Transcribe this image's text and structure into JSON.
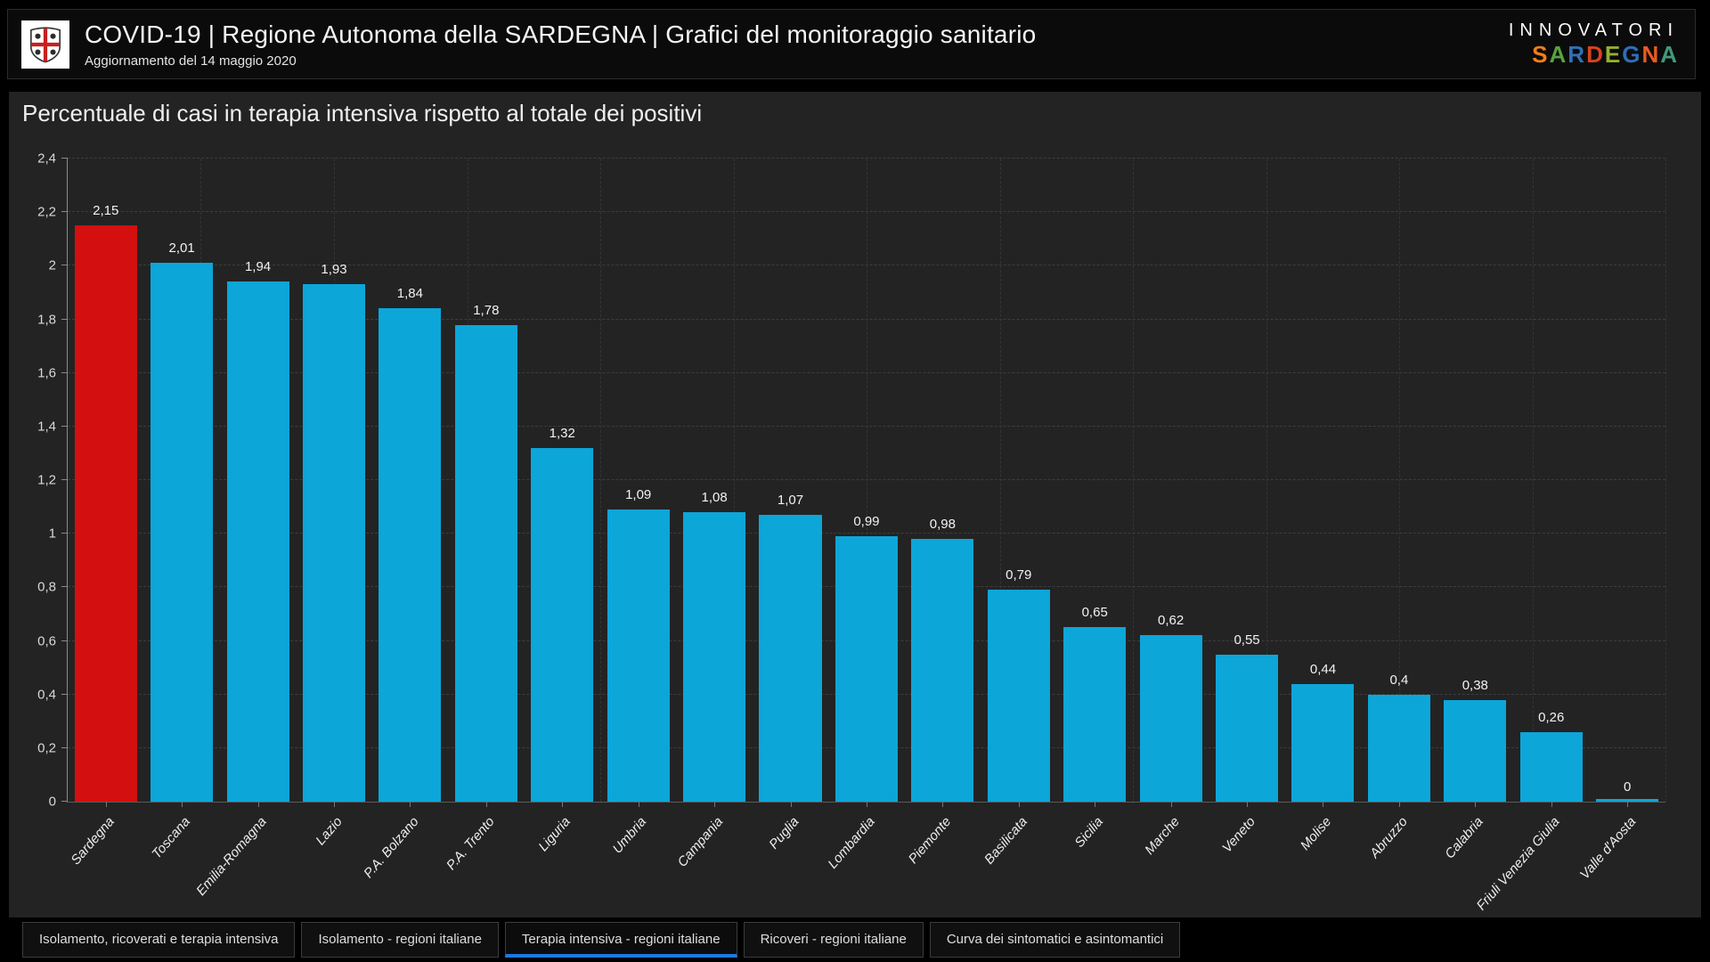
{
  "header": {
    "title": "COVID-19 | Regione Autonoma della SARDEGNA | Grafici del monitoraggio sanitario",
    "subtitle": "Aggiornamento del 14 maggio 2020",
    "logo": "stemma-sardegna-quattro-mori",
    "brand": {
      "line1": "INNOVATORI",
      "line2": "SARDEGNA",
      "line2_letters": [
        {
          "ch": "S",
          "color": "#ef7f1a"
        },
        {
          "ch": "A",
          "color": "#56a33f"
        },
        {
          "ch": "R",
          "color": "#3070b5"
        },
        {
          "ch": "D",
          "color": "#d7431f"
        },
        {
          "ch": "E",
          "color": "#93b02f"
        },
        {
          "ch": "G",
          "color": "#2f6fb4"
        },
        {
          "ch": "N",
          "color": "#ea5b21"
        },
        {
          "ch": "A",
          "color": "#3f9a7c"
        }
      ]
    }
  },
  "chart_data": {
    "type": "bar",
    "title": "Percentuale di casi in terapia intensiva rispetto al totale dei positivi",
    "categories": [
      "Sardegna",
      "Toscana",
      "Emilia-Romagna",
      "Lazio",
      "P.A. Bolzano",
      "P.A. Trento",
      "Liguria",
      "Umbria",
      "Campania",
      "Puglia",
      "Lombardia",
      "Piemonte",
      "Basilicata",
      "Sicilia",
      "Marche",
      "Veneto",
      "Molise",
      "Abruzzo",
      "Calabria",
      "Friuli Venezia Giulia",
      "Valle d'Aosta"
    ],
    "values": [
      2.15,
      2.01,
      1.94,
      1.93,
      1.84,
      1.78,
      1.32,
      1.09,
      1.08,
      1.07,
      0.99,
      0.98,
      0.79,
      0.65,
      0.62,
      0.55,
      0.44,
      0.4,
      0.38,
      0.26,
      0
    ],
    "value_labels": [
      "2,15",
      "2,01",
      "1,94",
      "1,93",
      "1,84",
      "1,78",
      "1,32",
      "1,09",
      "1,08",
      "1,07",
      "0,99",
      "0,98",
      "0,79",
      "0,65",
      "0,62",
      "0,55",
      "0,44",
      "0,4",
      "0,38",
      "0,26",
      "0"
    ],
    "y_ticks": [
      "0",
      "0,2",
      "0,4",
      "0,6",
      "0,8",
      "1",
      "1,2",
      "1,4",
      "1,6",
      "1,8",
      "2",
      "2,2",
      "2,4"
    ],
    "ylim": [
      0,
      2.4
    ],
    "xlabel": "",
    "ylabel": "",
    "legend": "none",
    "grid": "dotted",
    "bar_color": "#0ca6d9",
    "highlight_color": "#d40f0f",
    "highlight_index": 0
  },
  "tabs": [
    {
      "label": "Isolamento, ricoverati e terapia intensiva",
      "active": false
    },
    {
      "label": "Isolamento - regioni italiane",
      "active": false
    },
    {
      "label": "Terapia intensiva - regioni italiane",
      "active": true
    },
    {
      "label": "Ricoveri - regioni italiane",
      "active": false
    },
    {
      "label": "Curva dei sintomatici e asintomantici",
      "active": false
    }
  ]
}
